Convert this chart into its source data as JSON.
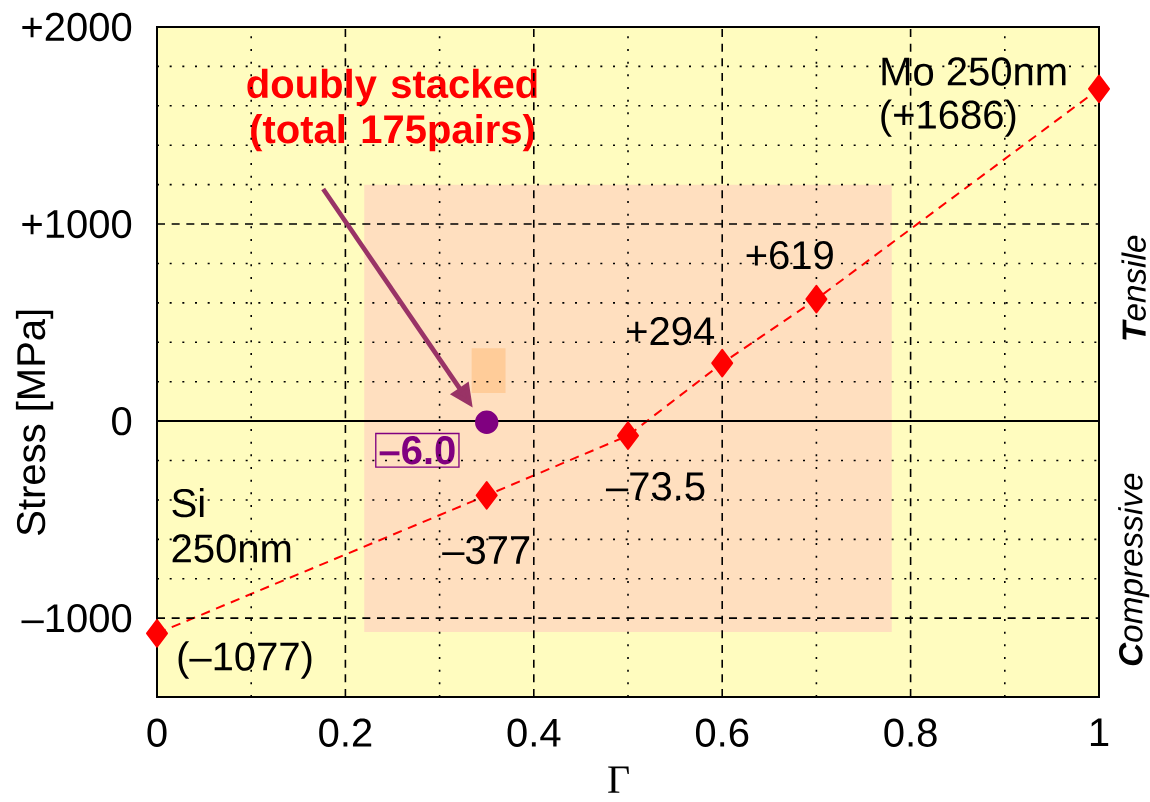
{
  "chart_data": {
    "type": "line",
    "xlabel": "Γ",
    "ylabel": "Stress [MPa]",
    "xlim": [
      0,
      1
    ],
    "ylim": [
      -1400,
      2000
    ],
    "xticks": [
      0,
      0.2,
      0.4,
      0.6,
      0.8,
      1
    ],
    "yticks": [
      {
        "value": -1000,
        "label": "–1000"
      },
      0,
      {
        "value": 1000,
        "label": "+1000"
      },
      {
        "value": 2000,
        "label": "+2000"
      }
    ],
    "grid": true,
    "series": [
      {
        "color": "#ff0000",
        "marker": "diamond",
        "line_style": "dashed",
        "x": [
          0,
          0.35,
          0.5,
          0.6,
          0.7,
          1
        ],
        "values": [
          -1077,
          -377,
          -73.5,
          294,
          619,
          1686
        ],
        "value_labels": [
          "(–1077)",
          "–377",
          "–73.5",
          "+294",
          "+619",
          "(+1686)"
        ]
      },
      {
        "type": "scatter",
        "color": "#800080",
        "marker": "circle",
        "x": [
          0.35
        ],
        "values": [
          -6.0
        ],
        "value_labels": [
          "–6.0"
        ]
      }
    ],
    "ref_lines": [
      {
        "axis": "y",
        "value": 0,
        "color": "#000000",
        "line_style": "solid"
      }
    ],
    "annotations": [
      "doubly stacked (total 175pairs)",
      {
        "text": "Mo 250nm",
        "x": 1,
        "y": 1686
      },
      {
        "text": "Si 250nm",
        "x": 0,
        "y": -1077
      },
      "**T**ensile",
      "**C**ompressive"
    ]
  }
}
